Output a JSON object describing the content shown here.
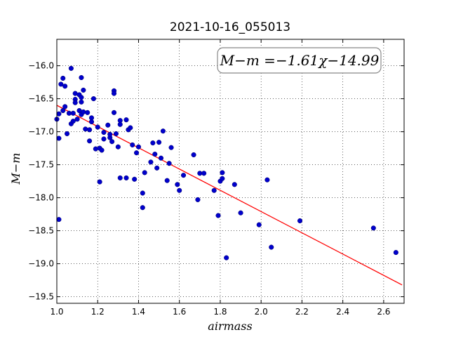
{
  "chart_data": {
    "type": "scatter",
    "title": "2021-10-16_055013",
    "xlabel": "airmass",
    "ylabel": "M−m",
    "xlim": [
      1.0,
      2.7
    ],
    "ylim": [
      -19.6,
      -15.6
    ],
    "x_ticks": [
      1.0,
      1.2,
      1.4,
      1.6,
      1.8,
      2.0,
      2.2,
      2.4,
      2.6
    ],
    "x_tick_labels": [
      "1.0",
      "1.2",
      "1.4",
      "1.6",
      "1.8",
      "2.0",
      "2.2",
      "2.4",
      "2.6"
    ],
    "y_ticks": [
      -16.0,
      -16.5,
      -17.0,
      -17.5,
      -18.0,
      -18.5,
      -19.0,
      -19.5
    ],
    "y_tick_labels": [
      "−16.0",
      "−16.5",
      "−17.0",
      "−17.5",
      "−18.0",
      "−18.5",
      "−19.0",
      "−19.5"
    ],
    "grid": true,
    "annotation": "M−m =−1.61χ−14.99",
    "fit": {
      "slope": -1.61,
      "intercept": -14.99,
      "x_range": [
        1.0,
        2.69
      ],
      "color": "#ff0000"
    },
    "marker_color": "#0000cc",
    "points": [
      {
        "x": 1.0,
        "y": -16.81
      },
      {
        "x": 1.01,
        "y": -16.73
      },
      {
        "x": 1.01,
        "y": -17.1
      },
      {
        "x": 1.01,
        "y": -18.33
      },
      {
        "x": 1.02,
        "y": -16.28
      },
      {
        "x": 1.03,
        "y": -16.19
      },
      {
        "x": 1.03,
        "y": -16.68
      },
      {
        "x": 1.04,
        "y": -16.31
      },
      {
        "x": 1.04,
        "y": -16.62
      },
      {
        "x": 1.05,
        "y": -17.03
      },
      {
        "x": 1.06,
        "y": -16.72
      },
      {
        "x": 1.07,
        "y": -16.04
      },
      {
        "x": 1.07,
        "y": -16.88
      },
      {
        "x": 1.08,
        "y": -16.72
      },
      {
        "x": 1.08,
        "y": -16.84
      },
      {
        "x": 1.09,
        "y": -16.42
      },
      {
        "x": 1.09,
        "y": -16.51
      },
      {
        "x": 1.09,
        "y": -16.56
      },
      {
        "x": 1.1,
        "y": -16.81
      },
      {
        "x": 1.11,
        "y": -16.68
      },
      {
        "x": 1.11,
        "y": -16.44
      },
      {
        "x": 1.12,
        "y": -16.18
      },
      {
        "x": 1.12,
        "y": -16.48
      },
      {
        "x": 1.12,
        "y": -16.55
      },
      {
        "x": 1.12,
        "y": -16.74
      },
      {
        "x": 1.13,
        "y": -16.37
      },
      {
        "x": 1.13,
        "y": -16.7
      },
      {
        "x": 1.14,
        "y": -16.96
      },
      {
        "x": 1.15,
        "y": -16.71
      },
      {
        "x": 1.16,
        "y": -17.14
      },
      {
        "x": 1.16,
        "y": -16.97
      },
      {
        "x": 1.17,
        "y": -16.79
      },
      {
        "x": 1.17,
        "y": -16.85
      },
      {
        "x": 1.18,
        "y": -16.5
      },
      {
        "x": 1.19,
        "y": -17.26
      },
      {
        "x": 1.2,
        "y": -16.93
      },
      {
        "x": 1.21,
        "y": -17.25
      },
      {
        "x": 1.21,
        "y": -17.76
      },
      {
        "x": 1.22,
        "y": -17.28
      },
      {
        "x": 1.23,
        "y": -17.11
      },
      {
        "x": 1.23,
        "y": -17.01
      },
      {
        "x": 1.25,
        "y": -16.9
      },
      {
        "x": 1.26,
        "y": -17.09
      },
      {
        "x": 1.26,
        "y": -17.04
      },
      {
        "x": 1.27,
        "y": -17.15
      },
      {
        "x": 1.28,
        "y": -16.71
      },
      {
        "x": 1.28,
        "y": -16.38
      },
      {
        "x": 1.28,
        "y": -16.42
      },
      {
        "x": 1.29,
        "y": -17.03
      },
      {
        "x": 1.3,
        "y": -17.23
      },
      {
        "x": 1.31,
        "y": -16.89
      },
      {
        "x": 1.31,
        "y": -16.83
      },
      {
        "x": 1.31,
        "y": -17.7
      },
      {
        "x": 1.34,
        "y": -16.82
      },
      {
        "x": 1.34,
        "y": -17.7
      },
      {
        "x": 1.35,
        "y": -16.97
      },
      {
        "x": 1.36,
        "y": -16.94
      },
      {
        "x": 1.37,
        "y": -17.2
      },
      {
        "x": 1.38,
        "y": -17.72
      },
      {
        "x": 1.39,
        "y": -17.32
      },
      {
        "x": 1.4,
        "y": -17.23
      },
      {
        "x": 1.42,
        "y": -18.15
      },
      {
        "x": 1.42,
        "y": -17.93
      },
      {
        "x": 1.43,
        "y": -17.62
      },
      {
        "x": 1.46,
        "y": -17.46
      },
      {
        "x": 1.47,
        "y": -17.17
      },
      {
        "x": 1.48,
        "y": -17.34
      },
      {
        "x": 1.49,
        "y": -17.55
      },
      {
        "x": 1.5,
        "y": -17.16
      },
      {
        "x": 1.51,
        "y": -17.4
      },
      {
        "x": 1.52,
        "y": -16.99
      },
      {
        "x": 1.54,
        "y": -17.74
      },
      {
        "x": 1.55,
        "y": -17.48
      },
      {
        "x": 1.56,
        "y": -17.24
      },
      {
        "x": 1.59,
        "y": -17.8
      },
      {
        "x": 1.6,
        "y": -17.89
      },
      {
        "x": 1.62,
        "y": -17.66
      },
      {
        "x": 1.67,
        "y": -17.35
      },
      {
        "x": 1.69,
        "y": -18.03
      },
      {
        "x": 1.7,
        "y": -17.63
      },
      {
        "x": 1.72,
        "y": -17.63
      },
      {
        "x": 1.77,
        "y": -17.89
      },
      {
        "x": 1.79,
        "y": -18.27
      },
      {
        "x": 1.8,
        "y": -17.75
      },
      {
        "x": 1.81,
        "y": -17.71
      },
      {
        "x": 1.81,
        "y": -17.62
      },
      {
        "x": 1.83,
        "y": -18.91
      },
      {
        "x": 1.87,
        "y": -17.8
      },
      {
        "x": 1.9,
        "y": -18.23
      },
      {
        "x": 1.99,
        "y": -18.41
      },
      {
        "x": 2.03,
        "y": -17.73
      },
      {
        "x": 2.05,
        "y": -18.75
      },
      {
        "x": 2.19,
        "y": -18.35
      },
      {
        "x": 2.55,
        "y": -18.46
      },
      {
        "x": 2.66,
        "y": -18.83
      }
    ]
  }
}
